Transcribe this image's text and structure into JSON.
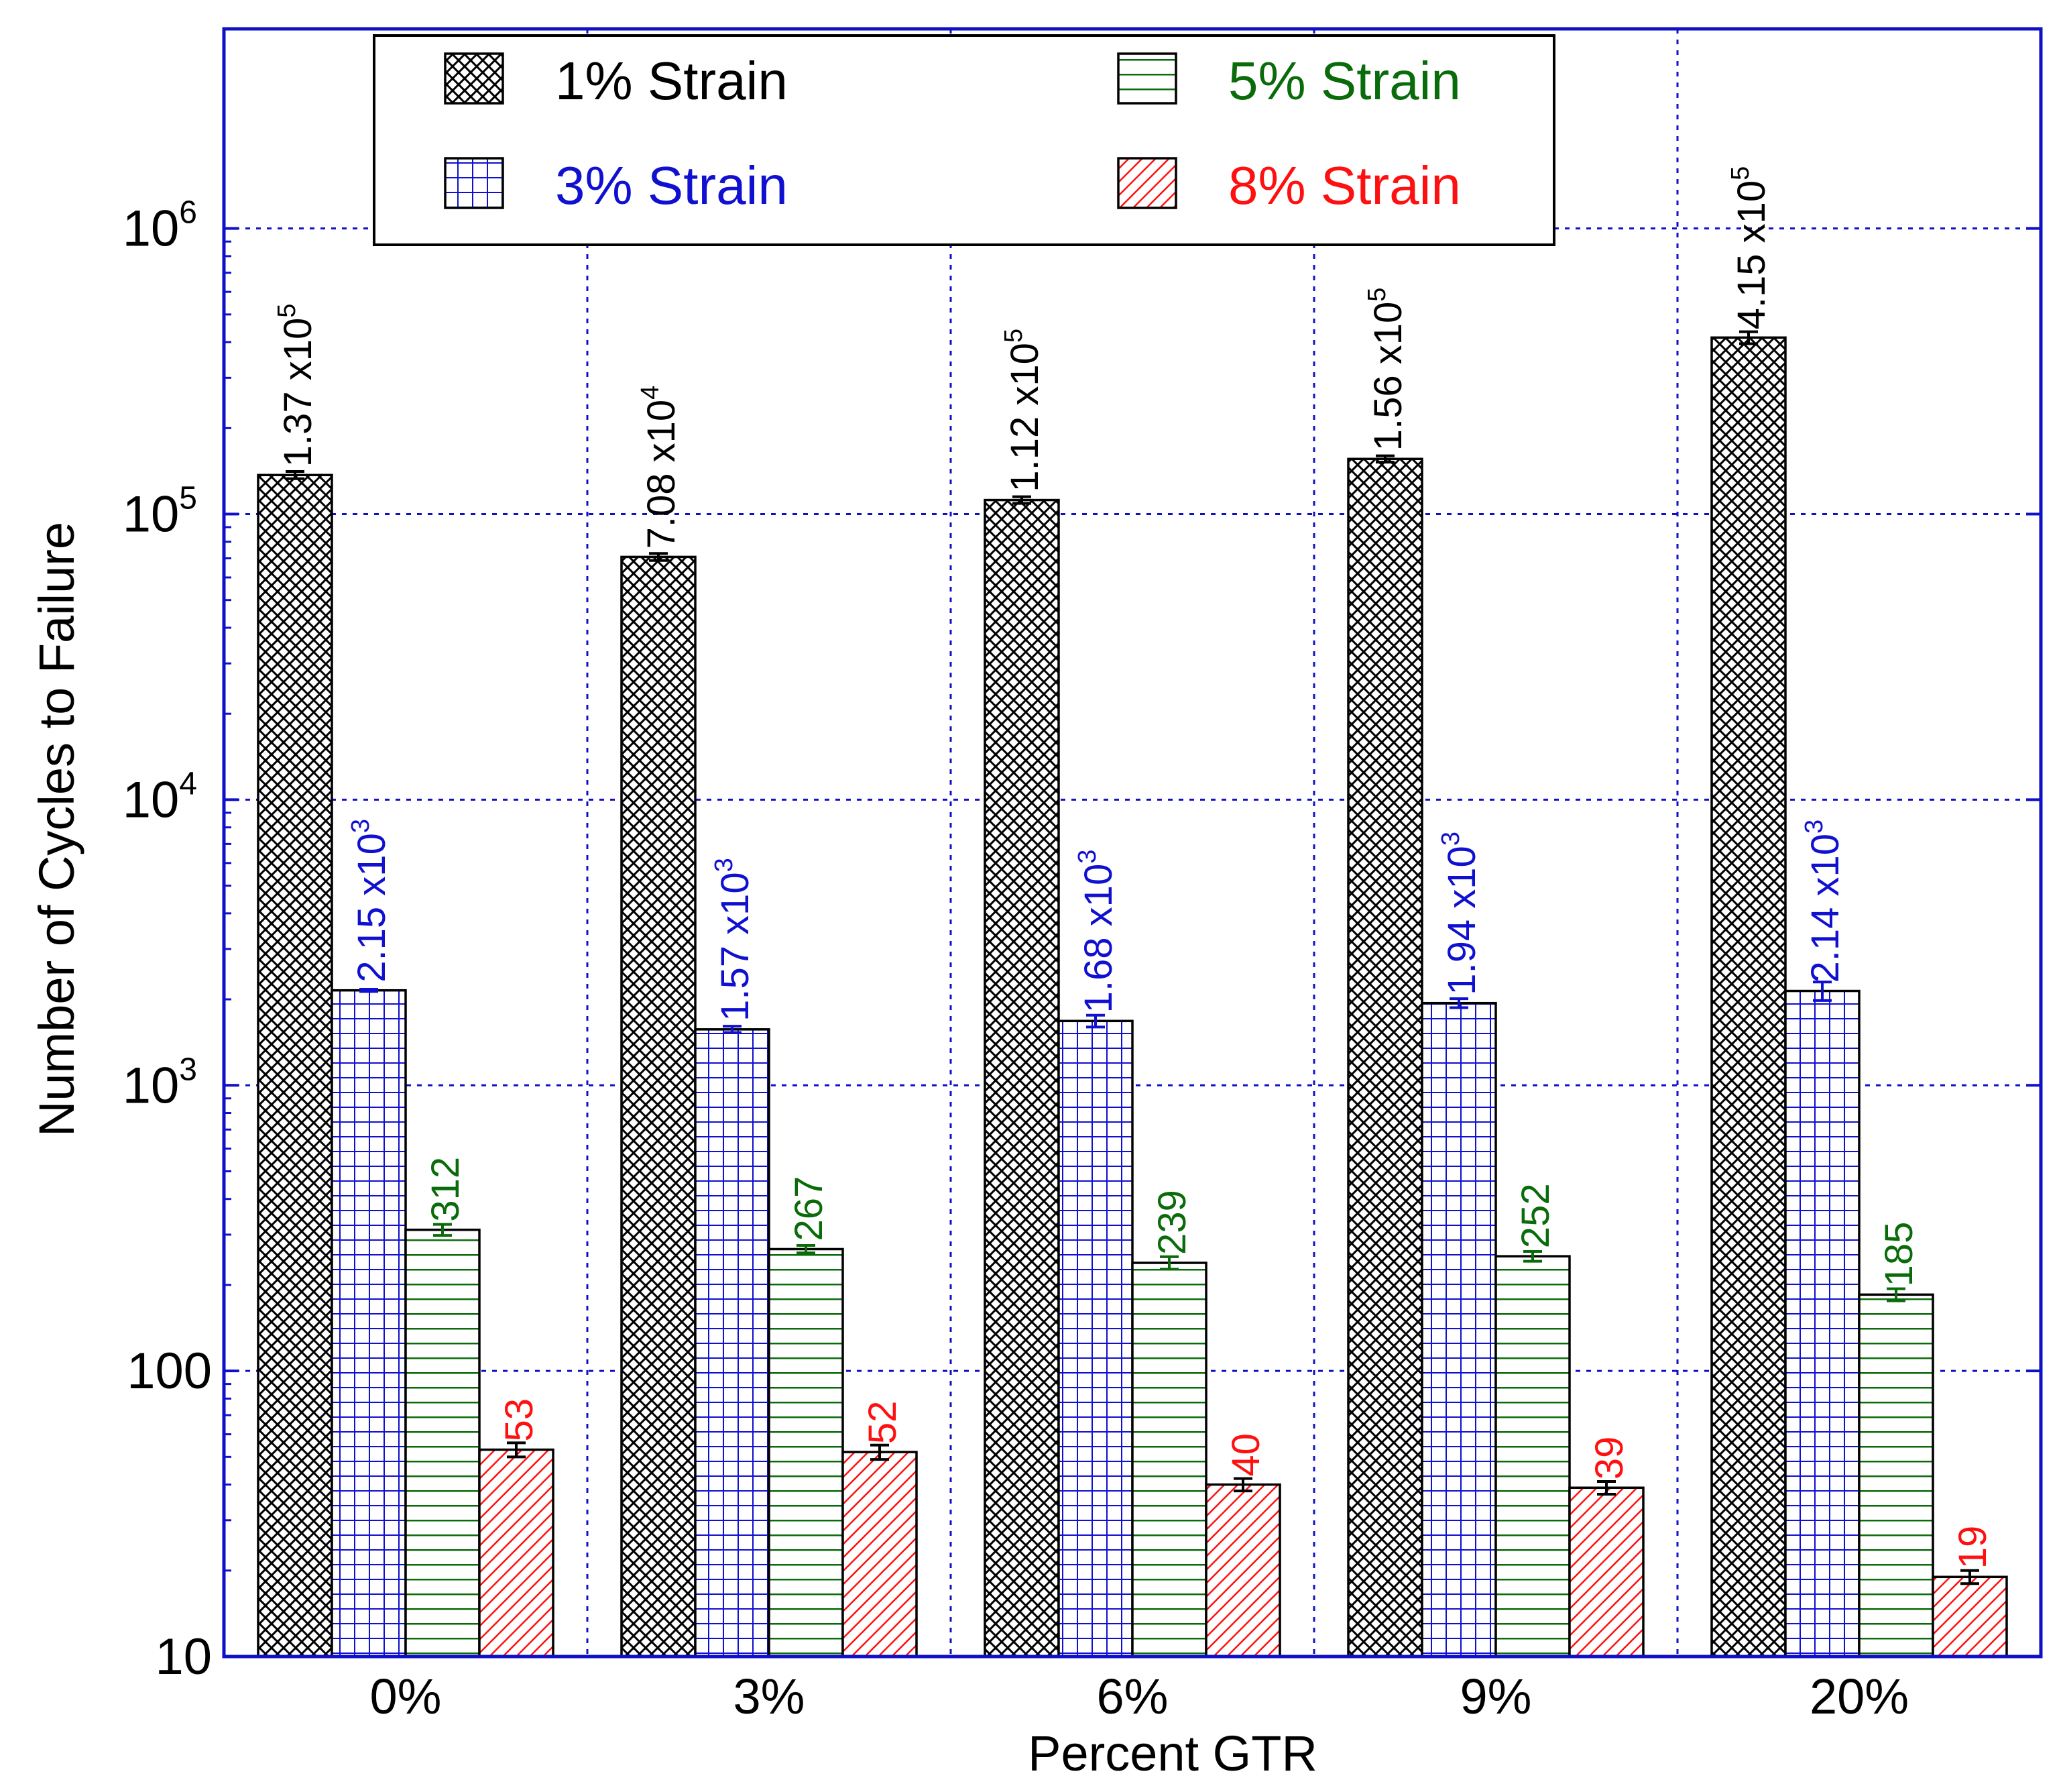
{
  "chart_data": {
    "type": "bar",
    "xlabel": "Percent GTR",
    "ylabel": "Number of Cycles to Failure",
    "yscale": "log",
    "ylim": [
      10,
      5000000
    ],
    "grid": true,
    "legend_position": "top",
    "categories": [
      "0%",
      "3%",
      "6%",
      "9%",
      "20%"
    ],
    "y_ticks": [
      {
        "value": 10,
        "label": "10",
        "base": "",
        "exp": ""
      },
      {
        "value": 100,
        "label": "100",
        "base": "",
        "exp": ""
      },
      {
        "value": 1000,
        "label": "",
        "base": "10",
        "exp": "3"
      },
      {
        "value": 10000,
        "label": "",
        "base": "10",
        "exp": "4"
      },
      {
        "value": 100000,
        "label": "",
        "base": "10",
        "exp": "5"
      },
      {
        "value": 1000000,
        "label": "",
        "base": "10",
        "exp": "6"
      }
    ],
    "series": [
      {
        "name": "1% Strain",
        "color": "#000000",
        "pattern": "crosshatch",
        "values": [
          137000,
          70800,
          112000,
          156000,
          415000
        ],
        "errors": [
          4000,
          2000,
          3000,
          4000,
          20000
        ],
        "labels": [
          {
            "mantissa": "1.37 x10",
            "exp": "5"
          },
          {
            "mantissa": "7.08 x10",
            "exp": "4"
          },
          {
            "mantissa": "1.12 x10",
            "exp": "5"
          },
          {
            "mantissa": "1.56 x10",
            "exp": "5"
          },
          {
            "mantissa": "4.15 x10",
            "exp": "5"
          }
        ]
      },
      {
        "name": "3% Strain",
        "color": "#1010d0",
        "pattern": "grid",
        "values": [
          2150,
          1570,
          1680,
          1940,
          2140
        ],
        "errors": [
          20,
          40,
          80,
          70,
          160
        ],
        "labels": [
          {
            "mantissa": "2.15 x10",
            "exp": "3"
          },
          {
            "mantissa": "1.57 x10",
            "exp": "3"
          },
          {
            "mantissa": "1.68 x10",
            "exp": "3"
          },
          {
            "mantissa": "1.94 x10",
            "exp": "3"
          },
          {
            "mantissa": "2.14 x10",
            "exp": "3"
          }
        ]
      },
      {
        "name": "5% Strain",
        "color": "#0a6b0a",
        "pattern": "hlines",
        "values": [
          312,
          267,
          239,
          252,
          185
        ],
        "errors": [
          14,
          8,
          12,
          10,
          9
        ],
        "labels": [
          {
            "mantissa": "312",
            "exp": ""
          },
          {
            "mantissa": "267",
            "exp": ""
          },
          {
            "mantissa": "239",
            "exp": ""
          },
          {
            "mantissa": "252",
            "exp": ""
          },
          {
            "mantissa": "185",
            "exp": ""
          }
        ]
      },
      {
        "name": "8% Strain",
        "color": "#ff1010",
        "pattern": "diag",
        "values": [
          53,
          52,
          40,
          39,
          19
        ],
        "errors": [
          3,
          3,
          2,
          2,
          1
        ],
        "labels": [
          {
            "mantissa": "53",
            "exp": ""
          },
          {
            "mantissa": "52",
            "exp": ""
          },
          {
            "mantissa": "40",
            "exp": ""
          },
          {
            "mantissa": "39",
            "exp": ""
          },
          {
            "mantissa": "19",
            "exp": ""
          }
        ]
      }
    ]
  }
}
